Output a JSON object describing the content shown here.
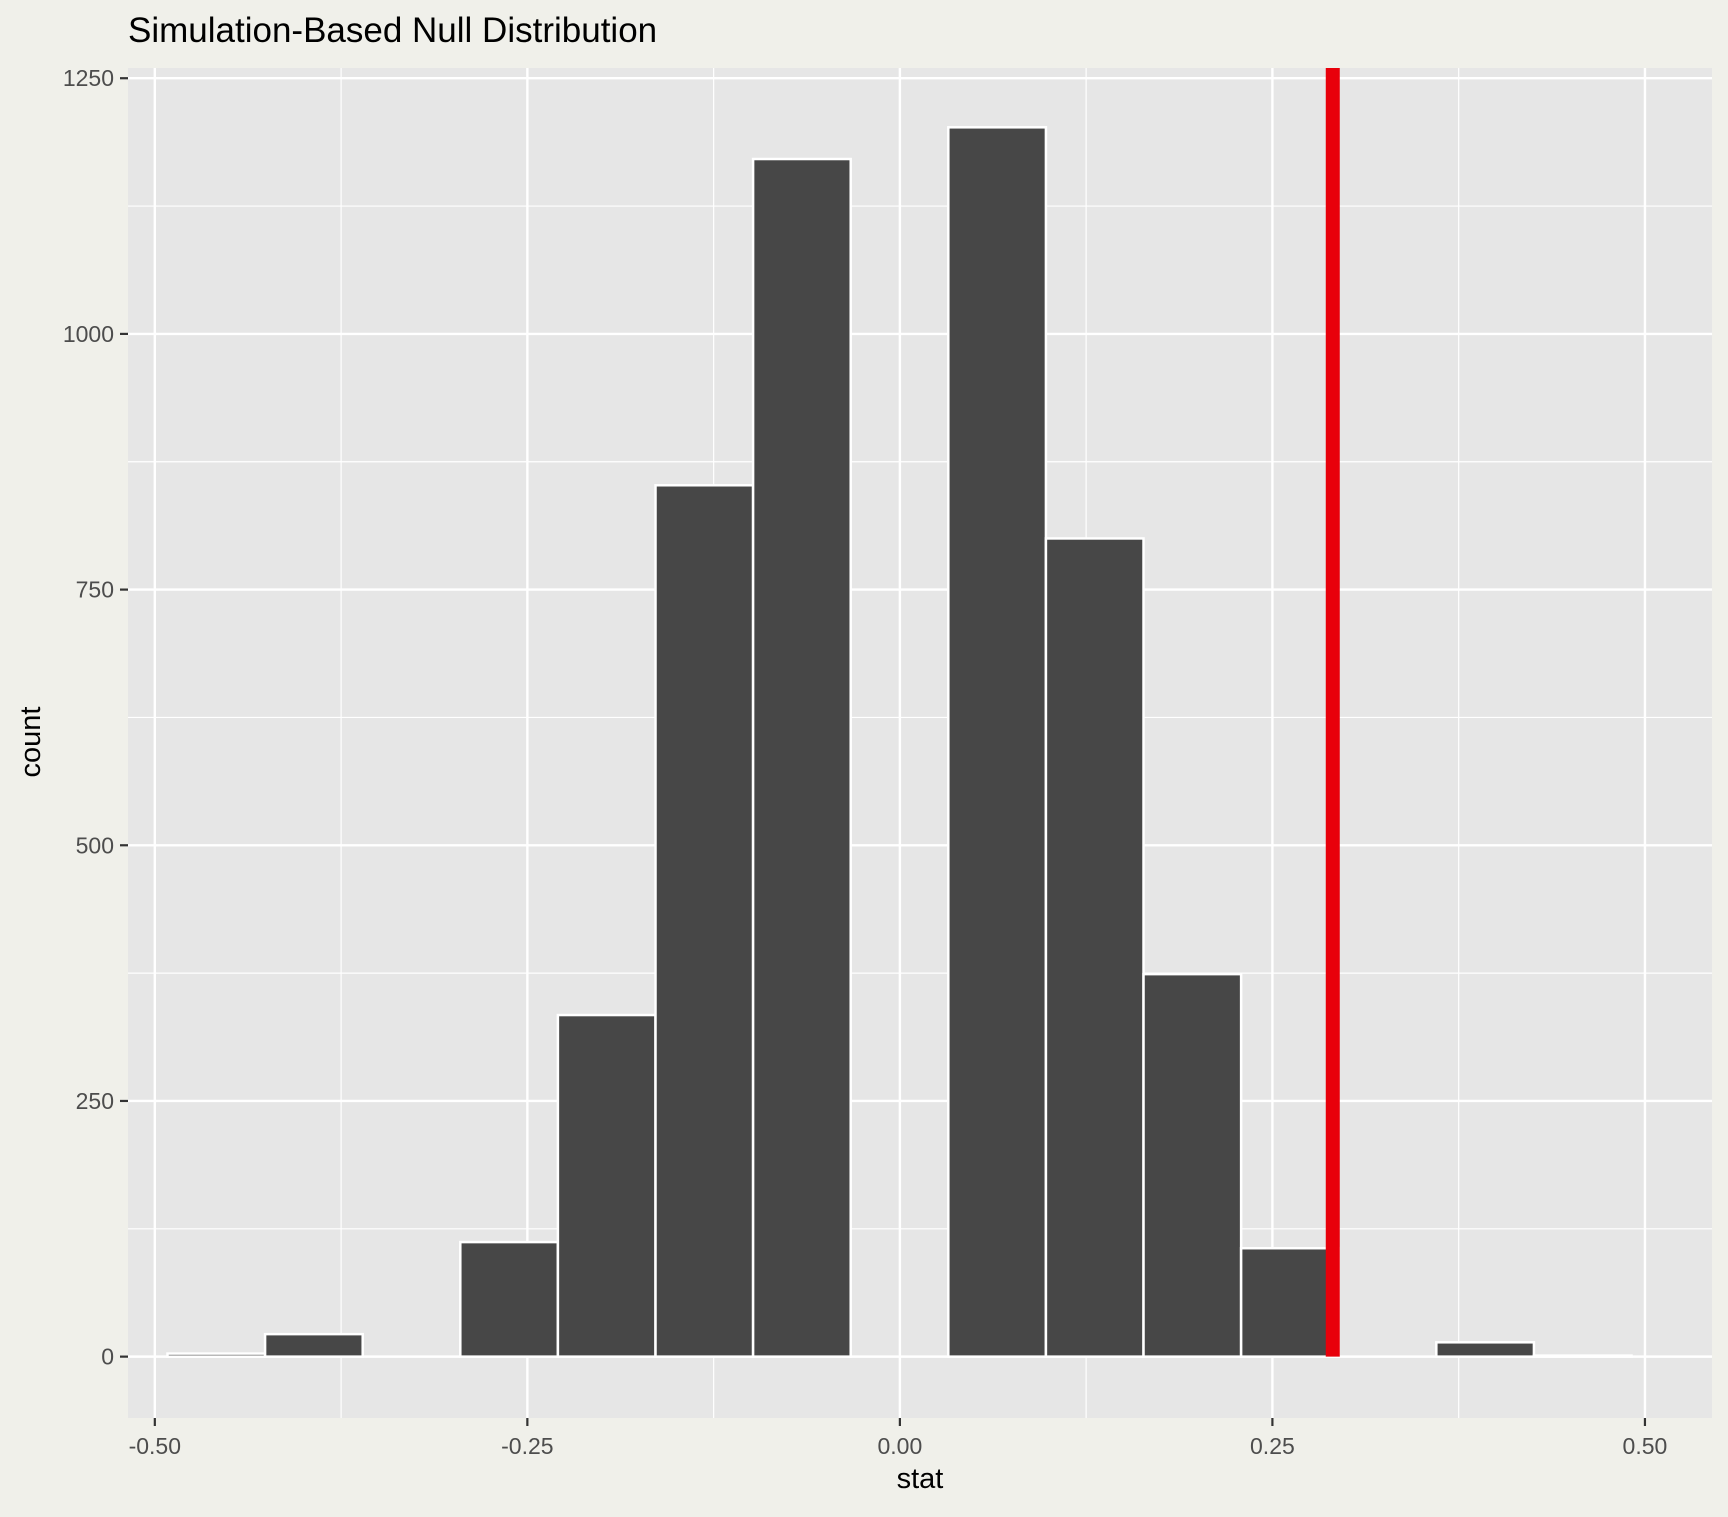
{
  "chart_data": {
    "type": "bar",
    "title": "Simulation-Based Null Distribution",
    "xlabel": "stat",
    "ylabel": "count",
    "xlim": [
      -0.518,
      0.545
    ],
    "ylim": [
      -60,
      1260
    ],
    "x_ticks": [
      -0.5,
      -0.25,
      0.0,
      0.25,
      0.5
    ],
    "x_tick_labels": [
      "-0.50",
      "-0.25",
      "0.00",
      "0.25",
      "0.50"
    ],
    "y_ticks": [
      0,
      250,
      500,
      750,
      1000,
      1250
    ],
    "y_tick_labels": [
      "0",
      "250",
      "500",
      "750",
      "1000",
      "1250"
    ],
    "grid": true,
    "bin_width": 0.0655,
    "bins": [
      {
        "x_min": -0.4915,
        "x_max": -0.426,
        "count": 3
      },
      {
        "x_min": -0.426,
        "x_max": -0.3605,
        "count": 22
      },
      {
        "x_min": -0.3605,
        "x_max": -0.295,
        "count": 0
      },
      {
        "x_min": -0.295,
        "x_max": -0.2295,
        "count": 112
      },
      {
        "x_min": -0.2295,
        "x_max": -0.164,
        "count": 334
      },
      {
        "x_min": -0.164,
        "x_max": -0.0985,
        "count": 852
      },
      {
        "x_min": -0.0985,
        "x_max": -0.033,
        "count": 1171
      },
      {
        "x_min": -0.033,
        "x_max": 0.0325,
        "count": 0
      },
      {
        "x_min": 0.0325,
        "x_max": 0.098,
        "count": 1202
      },
      {
        "x_min": 0.098,
        "x_max": 0.1635,
        "count": 800
      },
      {
        "x_min": 0.1635,
        "x_max": 0.229,
        "count": 374
      },
      {
        "x_min": 0.229,
        "x_max": 0.2945,
        "count": 106
      },
      {
        "x_min": 0.2945,
        "x_max": 0.36,
        "count": 0
      },
      {
        "x_min": 0.36,
        "x_max": 0.4255,
        "count": 14
      },
      {
        "x_min": 0.4255,
        "x_max": 0.491,
        "count": 1
      }
    ],
    "reference_line": {
      "x": 0.2905,
      "color": "#e8000b"
    },
    "bar_color": "#474747",
    "bar_outline_color": "#ffffff",
    "panel_color": "#e6e6e6",
    "background_color": "#f0f0ea"
  }
}
